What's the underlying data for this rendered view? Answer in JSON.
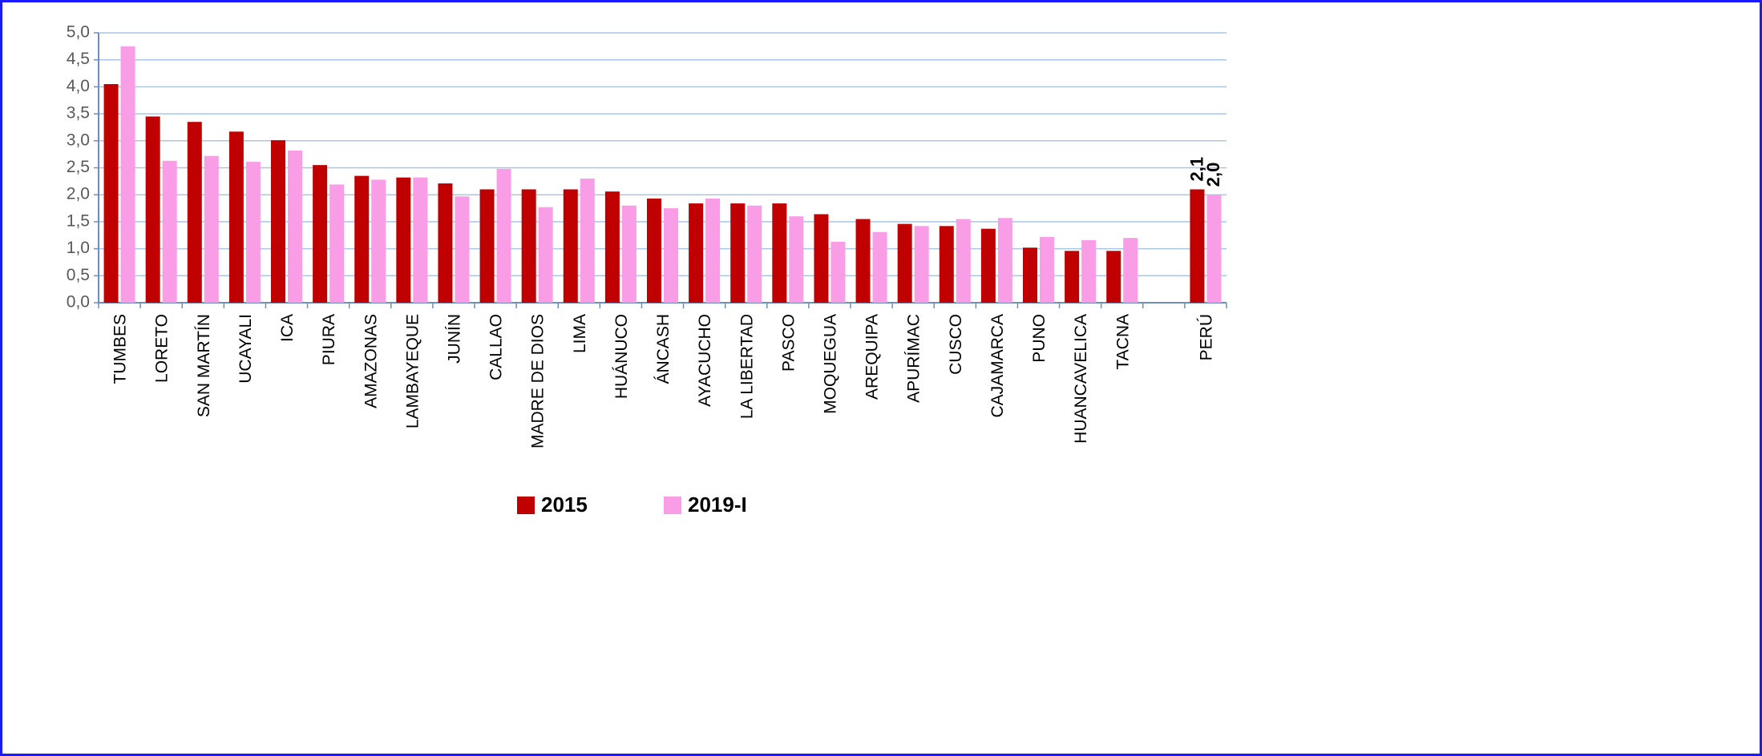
{
  "chart_data": {
    "type": "bar",
    "categories": [
      "TUMBES",
      "LORETO",
      "SAN MARTÍN",
      "UCAYALI",
      "ICA",
      "PIURA",
      "AMAZONAS",
      "LAMBAYEQUE",
      "JUNÍN",
      "CALLAO",
      "MADRE DE DIOS",
      "LIMA",
      "HUÁNUCO",
      "ÁNCASH",
      "AYACUCHO",
      "LA LIBERTAD",
      "PASCO",
      "MOQUEGUA",
      "AREQUIPA",
      "APURÍMAC",
      "CUSCO",
      "CAJAMARCA",
      "PUNO",
      "HUANCAVELICA",
      "TACNA",
      null,
      "PERÚ"
    ],
    "series": [
      {
        "name": "2015",
        "color": "#c00000",
        "values": [
          4.05,
          3.45,
          3.35,
          3.17,
          3.01,
          2.55,
          2.35,
          2.32,
          2.21,
          2.1,
          2.1,
          2.1,
          2.06,
          1.93,
          1.84,
          1.84,
          1.84,
          1.64,
          1.55,
          1.46,
          1.42,
          1.37,
          1.02,
          0.96,
          0.96,
          null,
          2.1
        ],
        "value_labels": [
          null,
          null,
          null,
          null,
          null,
          null,
          null,
          null,
          null,
          null,
          null,
          null,
          null,
          null,
          null,
          null,
          null,
          null,
          null,
          null,
          null,
          null,
          null,
          null,
          null,
          null,
          "2,1"
        ]
      },
      {
        "name": "2019-I",
        "color": "#f99de6",
        "values": [
          4.75,
          2.63,
          2.72,
          2.61,
          2.82,
          2.19,
          2.28,
          2.32,
          1.97,
          2.48,
          1.77,
          2.3,
          1.8,
          1.75,
          1.93,
          1.8,
          1.6,
          1.13,
          1.31,
          1.42,
          1.55,
          1.57,
          1.22,
          1.16,
          1.2,
          null,
          2.0
        ],
        "value_labels": [
          null,
          null,
          null,
          null,
          null,
          null,
          null,
          null,
          null,
          null,
          null,
          null,
          null,
          null,
          null,
          null,
          null,
          null,
          null,
          null,
          null,
          null,
          null,
          null,
          null,
          null,
          "2,0"
        ]
      }
    ],
    "ylim": [
      0,
      5
    ],
    "yticks": [
      {
        "value": 0,
        "label": "0,0"
      },
      {
        "value": 0.5,
        "label": "0,5"
      },
      {
        "value": 1,
        "label": "1,0"
      },
      {
        "value": 1.5,
        "label": "1,5"
      },
      {
        "value": 2,
        "label": "2,0"
      },
      {
        "value": 2.5,
        "label": "2,5"
      },
      {
        "value": 3,
        "label": "3,0"
      },
      {
        "value": 3.5,
        "label": "3,5"
      },
      {
        "value": 4,
        "label": "4,0"
      },
      {
        "value": 4.5,
        "label": "4,5"
      },
      {
        "value": 5,
        "label": "5,0"
      }
    ],
    "grid": true,
    "legend": "bottom"
  }
}
